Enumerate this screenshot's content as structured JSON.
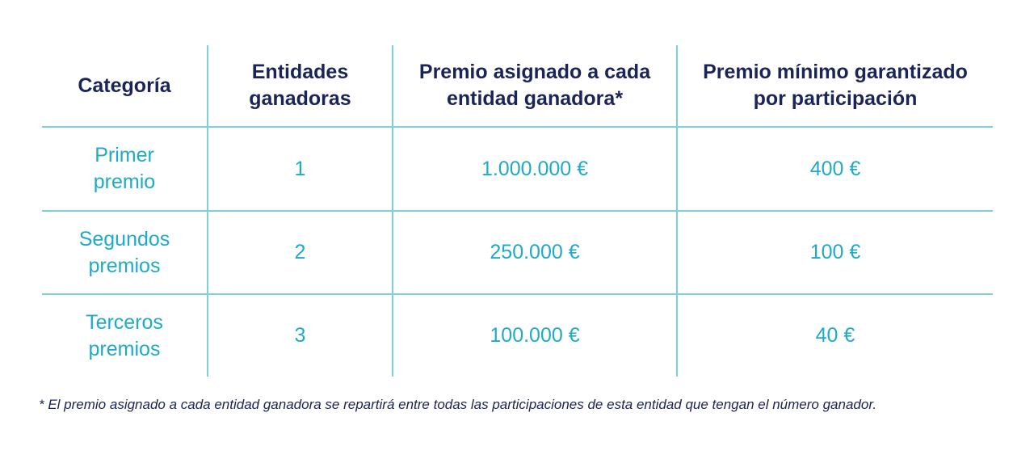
{
  "table": {
    "headers": [
      "Categoría",
      "Entidades ganadoras",
      "Premio asignado a cada entidad ganadora*",
      "Premio mínimo garantizado por participación"
    ],
    "rows": [
      [
        "Primer premio",
        "1",
        "1.000.000 €",
        "400 €"
      ],
      [
        "Segundos premios",
        "2",
        "250.000 €",
        "100 €"
      ],
      [
        "Terceros premios",
        "3",
        "100.000 €",
        "40 €"
      ]
    ]
  },
  "footnote": "* El premio asignado a cada entidad ganadora se repartirá entre todas las participaciones de esta entidad que tengan el número ganador.",
  "colors": {
    "header_text": "#1a2456",
    "data_text": "#1eaac9",
    "grid": "#7ccfdf"
  }
}
